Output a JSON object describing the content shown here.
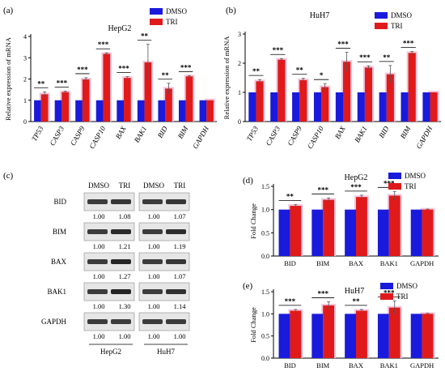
{
  "colors": {
    "dmso": "#1a1adc",
    "tri": "#e01a1a",
    "glow": "#f4c4dc",
    "axis": "#000000"
  },
  "chart_data": [
    {
      "type": "bar",
      "panel": "(a)",
      "title": "HepG2",
      "ylabel": "Relative expression of mRNA",
      "ylim": [
        0,
        4
      ],
      "yticks": [
        "0",
        "1",
        "2",
        "3",
        "4"
      ],
      "italic_categories": true,
      "categories": [
        "TP53",
        "CASP3",
        "CASP9",
        "CASP10",
        "BAX",
        "BAK1",
        "BID",
        "BIM",
        "GAPDH"
      ],
      "series": [
        {
          "name": "DMSO",
          "values": [
            1,
            1,
            1,
            1,
            1,
            1,
            1,
            1,
            1
          ],
          "errors": [
            0,
            0,
            0,
            0,
            0,
            0,
            0,
            0,
            0
          ]
        },
        {
          "name": "TRI",
          "values": [
            1.28,
            1.38,
            1.98,
            3.18,
            2.05,
            2.78,
            1.55,
            2.12,
            1.0
          ],
          "errors": [
            0.12,
            0.05,
            0.08,
            0.05,
            0.06,
            0.85,
            0.25,
            0.04,
            0
          ]
        }
      ],
      "significance": [
        "**",
        "***",
        "***",
        "***",
        "***",
        "**",
        "**",
        "***",
        ""
      ]
    },
    {
      "type": "bar",
      "panel": "(b)",
      "title": "HuH7",
      "ylabel": "Relative expression of mRNA",
      "ylim": [
        0,
        3
      ],
      "yticks": [
        "0",
        "1",
        "2",
        "3"
      ],
      "italic_categories": true,
      "categories": [
        "TP53",
        "CASP3",
        "CASP9",
        "CASP10",
        "BAX",
        "BAK1",
        "BID",
        "BIM",
        "GAPDH"
      ],
      "series": [
        {
          "name": "DMSO",
          "values": [
            1,
            1,
            1,
            1,
            1,
            1,
            1,
            1,
            1
          ],
          "errors": [
            0,
            0,
            0,
            0,
            0,
            0,
            0,
            0,
            0
          ]
        },
        {
          "name": "TRI",
          "values": [
            1.38,
            2.12,
            1.42,
            1.18,
            2.05,
            1.85,
            1.62,
            2.35,
            1.0
          ],
          "errors": [
            0.06,
            0.04,
            0.06,
            0.12,
            0.32,
            0.06,
            0.3,
            0.05,
            0
          ]
        }
      ],
      "significance": [
        "**",
        "***",
        "**",
        "*",
        "***",
        "***",
        "**",
        "***",
        ""
      ]
    },
    {
      "type": "bar",
      "panel": "(d)",
      "title": "HepG2",
      "ylabel": "Fold Change",
      "ylim": [
        0,
        1.5
      ],
      "yticks": [
        "0.0",
        "0.5",
        "1.0",
        "1.5"
      ],
      "italic_categories": false,
      "categories": [
        "BID",
        "BIM",
        "BAX",
        "BAK1",
        "GAPDH"
      ],
      "series": [
        {
          "name": "DMSO",
          "values": [
            1,
            1,
            1,
            1,
            1
          ],
          "errors": [
            0,
            0,
            0,
            0,
            0
          ]
        },
        {
          "name": "TRI",
          "values": [
            1.08,
            1.21,
            1.27,
            1.3,
            1.0
          ],
          "errors": [
            0.03,
            0.04,
            0.04,
            0.09,
            0.01
          ]
        }
      ],
      "significance": [
        "**",
        "***",
        "***",
        "***",
        ""
      ]
    },
    {
      "type": "bar",
      "panel": "(e)",
      "title": "HuH7",
      "ylabel": "Fold Change",
      "ylim": [
        0,
        1.5
      ],
      "yticks": [
        "0.0",
        "0.5",
        "1.0",
        "1.5"
      ],
      "italic_categories": false,
      "categories": [
        "BID",
        "BIM",
        "BAX",
        "BAK1",
        "GAPDH"
      ],
      "series": [
        {
          "name": "DMSO",
          "values": [
            1,
            1,
            1,
            1,
            1
          ],
          "errors": [
            0,
            0,
            0,
            0,
            0
          ]
        },
        {
          "name": "TRI",
          "values": [
            1.07,
            1.19,
            1.07,
            1.14,
            1.0
          ],
          "errors": [
            0.03,
            0.08,
            0.03,
            0.15,
            0.01
          ]
        }
      ],
      "significance": [
        "***",
        "***",
        "**",
        "***",
        ""
      ]
    }
  ],
  "blot": {
    "panel": "(c)",
    "lanes": [
      "DMSO",
      "TRI",
      "DMSO",
      "TRI"
    ],
    "groups": [
      "HepG2",
      "HuH7"
    ],
    "rows": [
      {
        "label": "BID",
        "values": [
          "1.00",
          "1.08",
          "1.00",
          "1.07"
        ]
      },
      {
        "label": "BIM",
        "values": [
          "1.00",
          "1.21",
          "1.00",
          "1.19"
        ]
      },
      {
        "label": "BAX",
        "values": [
          "1.00",
          "1.27",
          "1.00",
          "1.07"
        ]
      },
      {
        "label": "BAK1",
        "values": [
          "1.00",
          "1.30",
          "1.00",
          "1.14"
        ]
      },
      {
        "label": "GAPDH",
        "values": [
          "1.00",
          "1.00",
          "1.00",
          "1.00"
        ]
      }
    ]
  }
}
